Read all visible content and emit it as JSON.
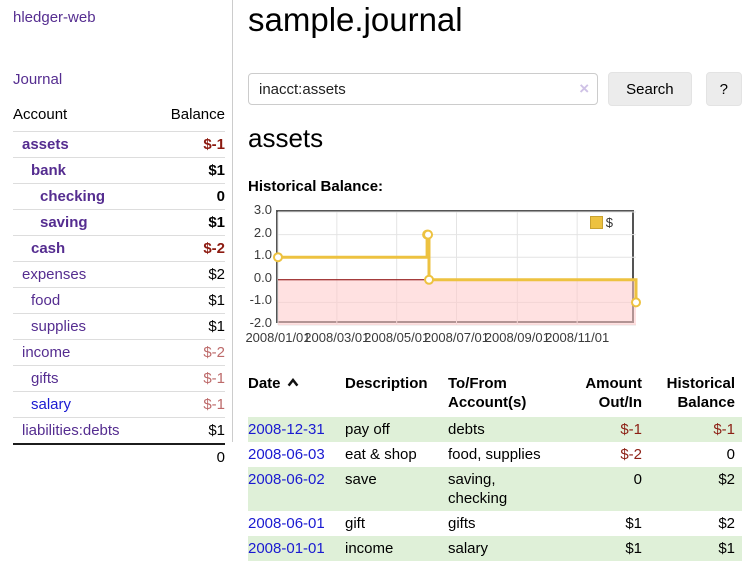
{
  "app": {
    "brand": "hledger-web"
  },
  "sidebar": {
    "nav_journal": "Journal",
    "accounts": {
      "header_account": "Account",
      "header_balance": "Balance",
      "rows": [
        {
          "name": "assets",
          "depth": 1,
          "bold": true,
          "link_style": "visited",
          "balance": "$-1",
          "balance_style": "negative"
        },
        {
          "name": "bank",
          "depth": 2,
          "bold": true,
          "link_style": "visited",
          "balance": "$1",
          "balance_style": ""
        },
        {
          "name": "checking",
          "depth": 3,
          "bold": true,
          "link_style": "visited",
          "balance": "0",
          "balance_style": ""
        },
        {
          "name": "saving",
          "depth": 3,
          "bold": true,
          "link_style": "visited",
          "balance": "$1",
          "balance_style": ""
        },
        {
          "name": "cash",
          "depth": 2,
          "bold": true,
          "link_style": "visited",
          "balance": "$-2",
          "balance_style": "negative"
        },
        {
          "name": "expenses",
          "depth": 1,
          "bold": false,
          "link_style": "visited",
          "balance": "$2",
          "balance_style": ""
        },
        {
          "name": "food",
          "depth": 2,
          "bold": false,
          "link_style": "visited",
          "balance": "$1",
          "balance_style": ""
        },
        {
          "name": "supplies",
          "depth": 2,
          "bold": false,
          "link_style": "visited",
          "balance": "$1",
          "balance_style": ""
        },
        {
          "name": "income",
          "depth": 1,
          "bold": false,
          "link_style": "visited",
          "balance": "$-2",
          "balance_style": "negative-light"
        },
        {
          "name": "gifts",
          "depth": 2,
          "bold": false,
          "link_style": "visited",
          "balance": "$-1",
          "balance_style": "negative-light"
        },
        {
          "name": "salary",
          "depth": 2,
          "bold": false,
          "link_style": "unvisited",
          "balance": "$-1",
          "balance_style": "negative-light"
        },
        {
          "name": "liabilities:debts",
          "depth": 1,
          "bold": false,
          "link_style": "visited",
          "balance": "$1",
          "balance_style": ""
        }
      ],
      "total": "0"
    }
  },
  "main": {
    "title": "sample.journal",
    "search": {
      "value": "inacct:assets",
      "clear_label": "×",
      "submit_label": "Search",
      "help_label": "?"
    },
    "account_heading": "assets",
    "chart_heading": "Historical Balance:",
    "register": {
      "sort_icon": "chevron-up",
      "headers": {
        "date": "Date",
        "description": "Description",
        "accounts_line1": "To/From",
        "accounts_line2": "Account(s)",
        "amount_line1": "Amount",
        "amount_line2": "Out/In",
        "balance_line1": "Historical",
        "balance_line2": "Balance"
      },
      "rows": [
        {
          "date": "2008-12-31",
          "description": "pay off",
          "accounts": "debts",
          "amount": "$-1",
          "amount_negative": true,
          "balance": "$-1",
          "balance_negative": true
        },
        {
          "date": "2008-06-03",
          "description": "eat & shop",
          "accounts": "food, supplies",
          "amount": "$-2",
          "amount_negative": true,
          "balance": "0",
          "balance_negative": false
        },
        {
          "date": "2008-06-02",
          "description": "save",
          "accounts": "saving, checking",
          "amount": "0",
          "amount_negative": false,
          "balance": "$2",
          "balance_negative": false
        },
        {
          "date": "2008-06-01",
          "description": "gift",
          "accounts": "gifts",
          "amount": "$1",
          "amount_negative": false,
          "balance": "$2",
          "balance_negative": false
        },
        {
          "date": "2008-01-01",
          "description": "income",
          "accounts": "salary",
          "amount": "$1",
          "amount_negative": false,
          "balance": "$1",
          "balance_negative": false
        }
      ]
    }
  },
  "chart_data": {
    "type": "line",
    "title": "Historical Balance:",
    "x_range": [
      "2008/01/01",
      "2008/12/31"
    ],
    "ylim": [
      -2.0,
      3.0
    ],
    "yticks": [
      "3.0",
      "2.0",
      "1.0",
      "0.0",
      "-1.0",
      "-2.0"
    ],
    "xticks": [
      "2008/01/01",
      "2008/03/01",
      "2008/05/01",
      "2008/07/01",
      "2008/09/01",
      "2008/11/01"
    ],
    "grid": true,
    "legend_position": "top-right",
    "series": [
      {
        "name": "$",
        "color": "#EDC240",
        "steps": true,
        "points": [
          {
            "x": "2008/01/01",
            "y": 1
          },
          {
            "x": "2008/06/01",
            "y": 2
          },
          {
            "x": "2008/06/02",
            "y": 2
          },
          {
            "x": "2008/06/03",
            "y": 0
          },
          {
            "x": "2008/12/31",
            "y": -1
          }
        ]
      }
    ],
    "negative_region_color": "#ffc9c9",
    "zero_line_color": "#8b0000"
  },
  "colors": {
    "link_visited": "#552d90",
    "link_unvisited": "#1a1ad1",
    "negative": "#8c1a10",
    "negative_light": "#bd6a6a",
    "row_highlight": "#dff0d8",
    "series_gold": "#EDC240",
    "chart_border": "#545454"
  }
}
